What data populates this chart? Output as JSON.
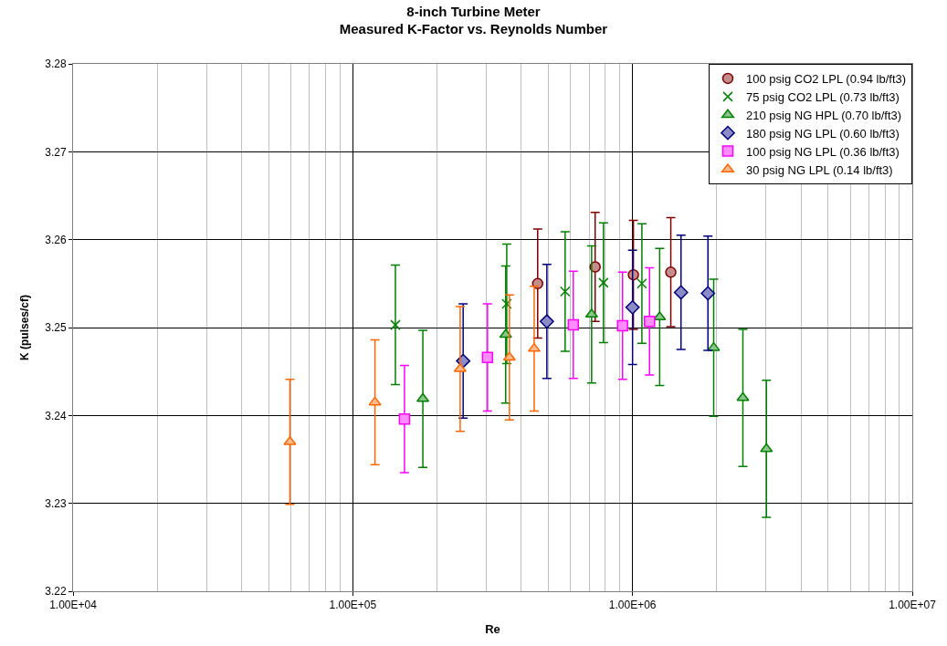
{
  "chart_data": {
    "type": "scatter",
    "title": "8-inch Turbine Meter\nMeasured K-Factor vs. Reynolds Number",
    "xlabel": "Re",
    "ylabel": "K (pulses/cf)",
    "log": "x",
    "grid": true,
    "legend": "top right",
    "xlim": [
      10000,
      10000000
    ],
    "xticks": [
      {
        "value": 10000,
        "label": "1.00E+04"
      },
      {
        "value": 20000,
        "label": null
      },
      {
        "value": 30000,
        "label": null
      },
      {
        "value": 40000,
        "label": null
      },
      {
        "value": 50000,
        "label": null
      },
      {
        "value": 60000,
        "label": null
      },
      {
        "value": 70000,
        "label": null
      },
      {
        "value": 80000,
        "label": null
      },
      {
        "value": 90000,
        "label": null
      },
      {
        "value": 100000,
        "label": "1.00E+05"
      },
      {
        "value": 200000,
        "label": null
      },
      {
        "value": 300000,
        "label": null
      },
      {
        "value": 400000,
        "label": null
      },
      {
        "value": 500000,
        "label": null
      },
      {
        "value": 600000,
        "label": null
      },
      {
        "value": 700000,
        "label": null
      },
      {
        "value": 800000,
        "label": null
      },
      {
        "value": 900000,
        "label": null
      },
      {
        "value": 1000000,
        "label": "1.00E+06"
      },
      {
        "value": 2000000,
        "label": null
      },
      {
        "value": 3000000,
        "label": null
      },
      {
        "value": 4000000,
        "label": null
      },
      {
        "value": 5000000,
        "label": null
      },
      {
        "value": 6000000,
        "label": null
      },
      {
        "value": 7000000,
        "label": null
      },
      {
        "value": 8000000,
        "label": null
      },
      {
        "value": 9000000,
        "label": null
      },
      {
        "value": 10000000,
        "label": "1.00E+07"
      }
    ],
    "ylim": [
      3.22,
      3.28
    ],
    "yticks": [
      3.22,
      3.23,
      3.24,
      3.25,
      3.26,
      3.27,
      3.28
    ],
    "series": [
      {
        "name": "100 psig CO2 LPL (0.94 lb/ft3)",
        "color": "#800000",
        "marker": "circle",
        "x": [
          458000,
          735000,
          1007000,
          1370000
        ],
        "values": [
          3.255,
          3.2569,
          3.256,
          3.2563
        ],
        "errors": [
          0.0062,
          0.0062,
          0.0062,
          0.0062
        ]
      },
      {
        "name": "75 psig CO2 LPL (0.73 lb/ft3)",
        "color": "#008000",
        "marker": "cross",
        "x": [
          142000,
          355000,
          574000,
          787000,
          1080000
        ],
        "values": [
          3.2503,
          3.2527,
          3.2541,
          3.2551,
          3.255
        ],
        "errors": [
          0.0068,
          0.0068,
          0.0068,
          0.0068,
          0.0068
        ]
      },
      {
        "name": "210 psig NG HPL (0.70 lb/ft3)",
        "color": "#008000",
        "marker": "triangle",
        "x": [
          178000,
          352000,
          714000,
          1250000,
          1950000,
          2480000,
          3010000
        ],
        "values": [
          3.2419,
          3.2492,
          3.2515,
          3.2512,
          3.2477,
          3.242,
          3.2362
        ],
        "errors": [
          0.0078,
          0.0078,
          0.0078,
          0.0078,
          0.0078,
          0.0078,
          0.0078
        ]
      },
      {
        "name": "180 psig NG LPL (0.60 lb/ft3)",
        "color": "#000080",
        "marker": "diamond",
        "x": [
          248000,
          494000,
          1000000,
          1490000,
          1860000
        ],
        "values": [
          3.2462,
          3.2507,
          3.2523,
          3.254,
          3.2539
        ],
        "errors": [
          0.0065,
          0.0065,
          0.0065,
          0.0065,
          0.0065
        ]
      },
      {
        "name": "100 psig NG LPL (0.36 lb/ft3)",
        "color": "#ff00ff",
        "marker": "square",
        "x": [
          153000,
          303000,
          614000,
          921000,
          1150000
        ],
        "values": [
          3.2396,
          3.2466,
          3.2503,
          3.2502,
          3.2507
        ],
        "errors": [
          0.0061,
          0.0061,
          0.0061,
          0.0061,
          0.0061
        ]
      },
      {
        "name": "30 psig NG LPL (0.14 lb/ft3)",
        "color": "#ff6600",
        "marker": "triangle",
        "x": [
          59600,
          120000,
          242000,
          363000,
          445000
        ],
        "values": [
          3.237,
          3.2415,
          3.2453,
          3.2466,
          3.2476
        ],
        "errors": [
          0.0071,
          0.0071,
          0.0071,
          0.0071,
          0.0071
        ]
      }
    ]
  }
}
